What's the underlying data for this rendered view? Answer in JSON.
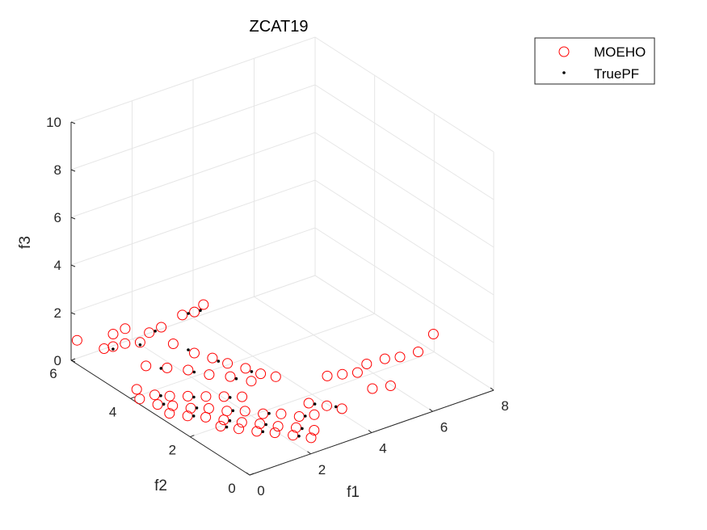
{
  "chart_data": {
    "type": "scatter",
    "title": "ZCAT19",
    "xlabel": "f1",
    "ylabel": "f2",
    "zlabel": "f3",
    "xlim": [
      0,
      8
    ],
    "ylim": [
      0,
      6
    ],
    "zlim": [
      0,
      10
    ],
    "xticks": [
      "0",
      "2",
      "4",
      "6",
      "8"
    ],
    "yticks": [
      "0",
      "2",
      "4",
      "6"
    ],
    "zticks": [
      "0",
      "2",
      "4",
      "6",
      "8",
      "10"
    ],
    "grid": true,
    "view": "3d",
    "legend_position": "top-right",
    "series": [
      {
        "name": "MOEHO",
        "marker": "circle",
        "color": "#ff0000",
        "points": [
          [
            0.0,
            5.8,
            1.0
          ],
          [
            0.3,
            5.2,
            1.0
          ],
          [
            0.4,
            5.0,
            1.2
          ],
          [
            0.6,
            4.8,
            1.4
          ],
          [
            0.8,
            4.5,
            1.6
          ],
          [
            0.5,
            5.1,
            1.6
          ],
          [
            0.7,
            4.9,
            1.9
          ],
          [
            1.0,
            4.4,
            2.0
          ],
          [
            1.2,
            4.2,
            2.3
          ],
          [
            1.5,
            3.8,
            3.0
          ],
          [
            1.7,
            3.6,
            3.2
          ],
          [
            1.9,
            3.5,
            3.5
          ],
          [
            1.3,
            3.9,
            1.8
          ],
          [
            1.6,
            3.5,
            1.6
          ],
          [
            1.9,
            3.2,
            1.5
          ],
          [
            2.2,
            3.0,
            1.3
          ],
          [
            2.5,
            2.7,
            1.2
          ],
          [
            2.8,
            2.5,
            1.0
          ],
          [
            3.1,
            2.3,
            0.9
          ],
          [
            0.2,
            4.0,
            0.3
          ],
          [
            0.4,
            3.6,
            0.3
          ],
          [
            0.6,
            3.3,
            0.4
          ],
          [
            0.9,
            3.0,
            0.5
          ],
          [
            1.2,
            2.7,
            0.6
          ],
          [
            1.5,
            2.4,
            0.7
          ],
          [
            1.8,
            2.1,
            0.8
          ],
          [
            0.1,
            3.8,
            0.1
          ],
          [
            0.3,
            3.4,
            0.1
          ],
          [
            0.5,
            3.1,
            0.2
          ],
          [
            0.8,
            2.8,
            0.2
          ],
          [
            1.1,
            2.5,
            0.3
          ],
          [
            1.4,
            2.2,
            0.3
          ],
          [
            1.7,
            1.9,
            0.4
          ],
          [
            2.0,
            1.6,
            0.4
          ],
          [
            2.3,
            1.3,
            0.5
          ],
          [
            2.6,
            1.0,
            0.5
          ],
          [
            2.9,
            0.8,
            0.6
          ],
          [
            0.3,
            3.0,
            0.05
          ],
          [
            0.6,
            2.7,
            0.05
          ],
          [
            0.9,
            2.4,
            0.1
          ],
          [
            1.2,
            2.1,
            0.1
          ],
          [
            1.5,
            1.8,
            0.1
          ],
          [
            1.8,
            1.5,
            0.15
          ],
          [
            2.1,
            1.2,
            0.15
          ],
          [
            2.4,
            0.9,
            0.2
          ],
          [
            2.7,
            0.6,
            0.2
          ],
          [
            1.0,
            2.0,
            0.0
          ],
          [
            1.3,
            1.7,
            0.0
          ],
          [
            1.6,
            1.4,
            0.0
          ],
          [
            1.9,
            1.1,
            0.05
          ],
          [
            2.2,
            0.8,
            0.05
          ],
          [
            2.5,
            0.5,
            0.05
          ],
          [
            0.7,
            4.2,
            0.9
          ],
          [
            1.0,
            3.8,
            1.0
          ],
          [
            1.3,
            3.4,
            1.1
          ],
          [
            1.6,
            3.0,
            1.1
          ],
          [
            1.9,
            2.6,
            1.2
          ],
          [
            2.2,
            2.2,
            1.2
          ],
          [
            3.4,
            1.5,
            0.3
          ],
          [
            3.7,
            1.2,
            0.3
          ],
          [
            4.0,
            1.0,
            0.2
          ],
          [
            4.3,
            1.8,
            0.8
          ],
          [
            4.6,
            1.6,
            0.9
          ],
          [
            4.9,
            1.4,
            1.0
          ],
          [
            5.3,
            1.5,
            1.1
          ],
          [
            5.7,
            1.3,
            1.3
          ],
          [
            6.0,
            1.1,
            1.4
          ],
          [
            5.0,
            1.0,
            0.6
          ],
          [
            5.4,
            0.8,
            0.7
          ],
          [
            6.4,
            0.9,
            1.6
          ],
          [
            7.0,
            1.0,
            2.0
          ]
        ]
      },
      {
        "name": "TruePF",
        "marker": "point",
        "color": "#000000",
        "points": [
          [
            0.4,
            5.0,
            1.1
          ],
          [
            0.8,
            4.5,
            1.5
          ],
          [
            1.1,
            4.3,
            2.1
          ],
          [
            1.6,
            3.7,
            3.1
          ],
          [
            1.8,
            3.5,
            3.3
          ],
          [
            1.5,
            3.6,
            1.7
          ],
          [
            2.0,
            3.1,
            1.4
          ],
          [
            2.6,
            2.6,
            1.1
          ],
          [
            0.5,
            3.5,
            0.3
          ],
          [
            1.0,
            2.9,
            0.5
          ],
          [
            1.6,
            2.3,
            0.7
          ],
          [
            0.4,
            3.3,
            0.15
          ],
          [
            0.9,
            2.7,
            0.25
          ],
          [
            1.5,
            2.1,
            0.35
          ],
          [
            2.1,
            1.5,
            0.45
          ],
          [
            2.7,
            0.9,
            0.55
          ],
          [
            0.7,
            2.6,
            0.08
          ],
          [
            1.3,
            2.0,
            0.1
          ],
          [
            1.9,
            1.4,
            0.15
          ],
          [
            2.5,
            0.8,
            0.2
          ],
          [
            1.1,
            1.9,
            0.0
          ],
          [
            1.7,
            1.3,
            0.02
          ],
          [
            2.3,
            0.7,
            0.05
          ],
          [
            0.9,
            3.9,
            0.95
          ],
          [
            1.4,
            3.3,
            1.05
          ],
          [
            2.0,
            2.5,
            1.15
          ],
          [
            3.5,
            1.4,
            0.3
          ],
          [
            3.9,
            1.1,
            0.25
          ]
        ]
      }
    ]
  }
}
